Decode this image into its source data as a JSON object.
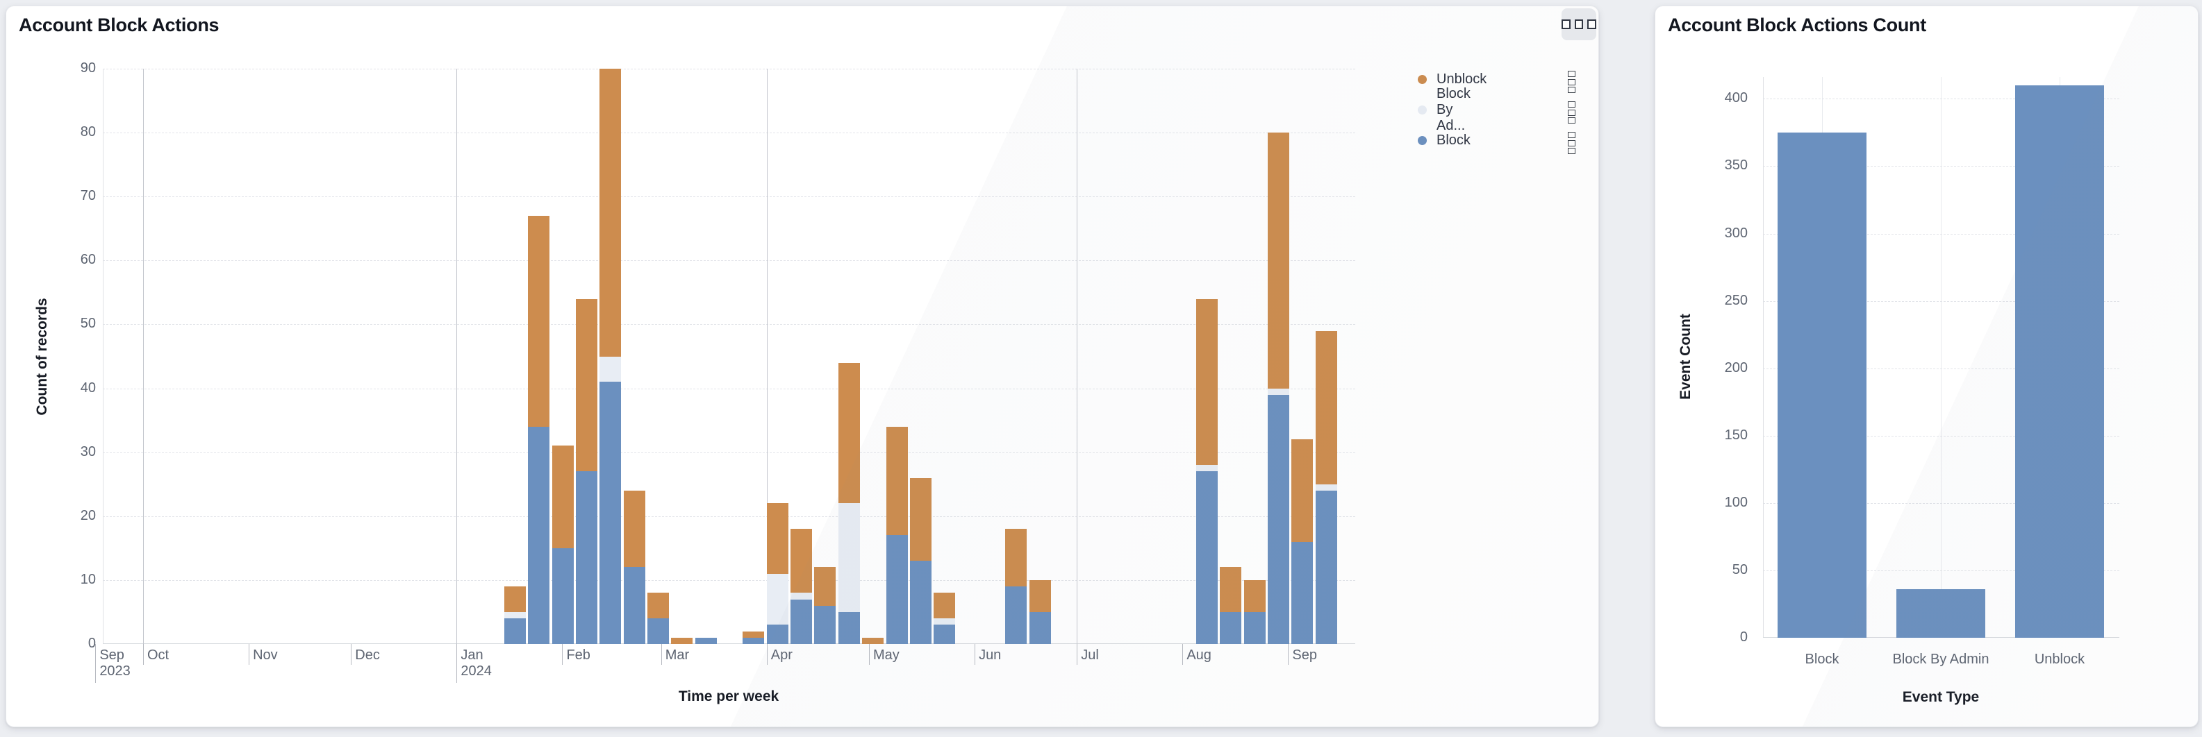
{
  "page_background": "#eceef2",
  "left_card": {
    "title": "Account Block Actions",
    "options_icon": "three-squares-menu-icon",
    "legend": [
      {
        "label": "Unblock",
        "color": "#cd8c4e"
      },
      {
        "label": "Block By Ad...",
        "full_label": "Block By Admin",
        "color": "#e8edf4"
      },
      {
        "label": "Block",
        "color": "#6b90bf"
      }
    ],
    "legend_item_menu_icon": "stacked-squares-kebab-icon"
  },
  "right_card": {
    "title": "Account Block Actions Count"
  },
  "chart_data": [
    {
      "id": "account-block-actions",
      "type": "bar",
      "stacked": true,
      "title": "Account Block Actions",
      "xlabel": "Time per week",
      "ylabel": "Count of records",
      "ylim": [
        0,
        90
      ],
      "y_ticks": [
        0,
        10,
        20,
        30,
        40,
        50,
        60,
        70,
        80,
        90
      ],
      "grid": true,
      "legend_position": "top-right",
      "x_unit": "week",
      "x": [
        "2024-01-15",
        "2024-01-22",
        "2024-01-29",
        "2024-02-05",
        "2024-02-12",
        "2024-02-19",
        "2024-02-26",
        "2024-03-04",
        "2024-03-11",
        "2024-03-25",
        "2024-04-01",
        "2024-04-08",
        "2024-04-15",
        "2024-04-22",
        "2024-04-29",
        "2024-05-06",
        "2024-05-13",
        "2024-05-20",
        "2024-06-10",
        "2024-06-17",
        "2024-08-05",
        "2024-08-12",
        "2024-08-19",
        "2024-08-26",
        "2024-09-02",
        "2024-09-09"
      ],
      "series": [
        {
          "name": "Block",
          "color": "#6b90bf",
          "values": [
            4,
            34,
            15,
            27,
            41,
            12,
            4,
            0,
            1,
            1,
            3,
            7,
            6,
            5,
            0,
            17,
            13,
            3,
            9,
            5,
            27,
            5,
            5,
            39,
            16,
            24
          ]
        },
        {
          "name": "Block By Admin",
          "color": "#e8edf4",
          "values": [
            1,
            0,
            0,
            0,
            4,
            0,
            0,
            0,
            0,
            0,
            8,
            1,
            0,
            17,
            0,
            0,
            0,
            1,
            0,
            0,
            1,
            0,
            0,
            1,
            0,
            1
          ]
        },
        {
          "name": "Unblock",
          "color": "#cd8c4e",
          "values": [
            4,
            33,
            16,
            27,
            45,
            12,
            4,
            1,
            0,
            1,
            11,
            10,
            6,
            22,
            1,
            17,
            13,
            4,
            9,
            5,
            26,
            7,
            5,
            40,
            16,
            24
          ]
        }
      ],
      "x_axis_months": [
        {
          "label": "Sep",
          "sublabel": "2023",
          "date": "2023-09-17",
          "quarter_gridline": false
        },
        {
          "label": "Oct",
          "date": "2023-10-01",
          "quarter_gridline": true
        },
        {
          "label": "Nov",
          "date": "2023-11-01",
          "quarter_gridline": false
        },
        {
          "label": "Dec",
          "date": "2023-12-01",
          "quarter_gridline": false
        },
        {
          "label": "Jan",
          "sublabel": "2024",
          "date": "2024-01-01",
          "quarter_gridline": true
        },
        {
          "label": "Feb",
          "date": "2024-02-01",
          "quarter_gridline": false
        },
        {
          "label": "Mar",
          "date": "2024-03-01",
          "quarter_gridline": false
        },
        {
          "label": "Apr",
          "date": "2024-04-01",
          "quarter_gridline": true
        },
        {
          "label": "May",
          "date": "2024-05-01",
          "quarter_gridline": false
        },
        {
          "label": "Jun",
          "date": "2024-06-01",
          "quarter_gridline": false
        },
        {
          "label": "Jul",
          "date": "2024-07-01",
          "quarter_gridline": true
        },
        {
          "label": "Aug",
          "date": "2024-08-01",
          "quarter_gridline": false
        },
        {
          "label": "Sep",
          "date": "2024-09-01",
          "quarter_gridline": false
        }
      ]
    },
    {
      "id": "account-block-actions-count",
      "type": "bar",
      "stacked": false,
      "title": "Account Block Actions Count",
      "xlabel": "Event Type",
      "ylabel": "Event Count",
      "ylim": [
        0,
        410
      ],
      "y_ticks": [
        0,
        50,
        100,
        150,
        200,
        250,
        300,
        350,
        400
      ],
      "grid": true,
      "categories": [
        "Block",
        "Block By Admin",
        "Unblock"
      ],
      "values": [
        375,
        36,
        410
      ],
      "bar_color": "#6b90bf"
    }
  ]
}
